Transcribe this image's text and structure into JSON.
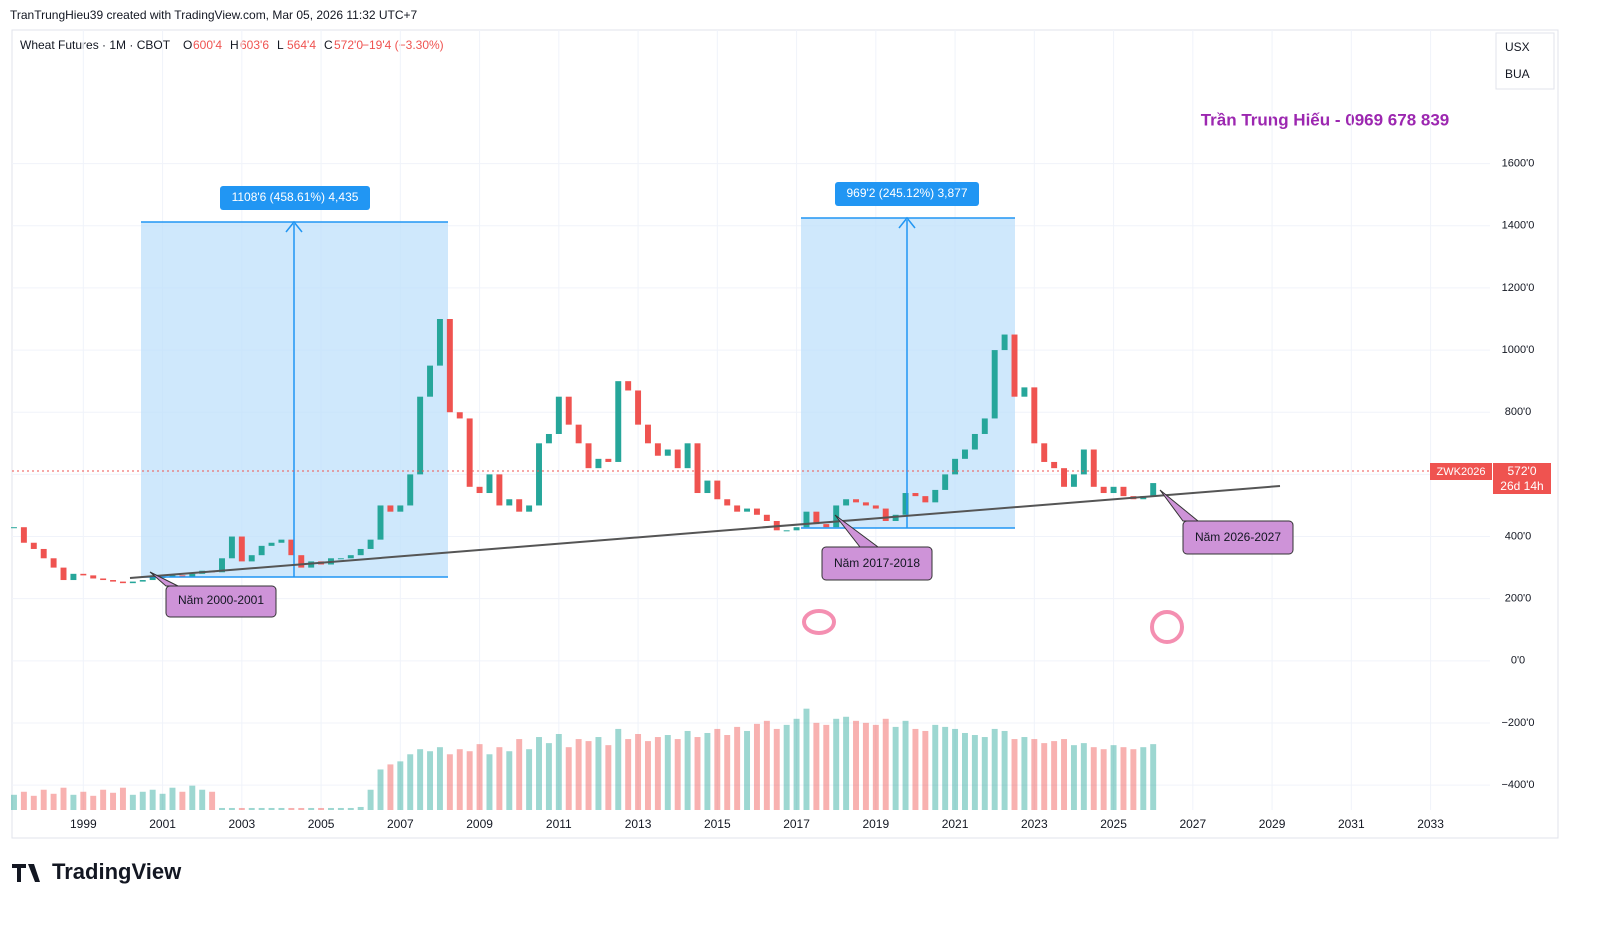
{
  "header": {
    "credit": "TranTrungHieu39 created with TradingView.com, Mar 05, 2026 11:32 UTC+7",
    "symbol": "Wheat Futures · 1M · CBOT",
    "ohlc": [
      {
        "key": "O",
        "text": "600'4"
      },
      {
        "key": "H",
        "text": "603'6"
      },
      {
        "key": "L",
        "text": "564'4"
      },
      {
        "key": "C",
        "text": "572'0"
      }
    ],
    "change": "−19'4 (−3.30%)"
  },
  "units": [
    "USX",
    "BUA"
  ],
  "watermark": "Trần Trung Hiếu - 0969 678 839",
  "measures": [
    "1108'6 (458.61%) 4,435",
    "969'2 (245.12%) 3,877"
  ],
  "annotations": [
    "Năm 2000-2001",
    "Năm 2017-2018",
    "Năm 2026-2027"
  ],
  "price_tag": {
    "symbol": "ZWK2026",
    "price": "572'0",
    "countdown": "26d 14h"
  },
  "logo": "TradingView",
  "chart_data": {
    "type": "candlestick",
    "xlim": [
      1997.2,
      2034.5
    ],
    "ylim": [
      -480,
      2030
    ],
    "xticks": [
      1999,
      2001,
      2003,
      2005,
      2007,
      2009,
      2011,
      2013,
      2015,
      2017,
      2019,
      2021,
      2023,
      2025,
      2027,
      2029,
      2031,
      2033
    ],
    "yticks": [
      {
        "value": 1600,
        "label": "1600'0"
      },
      {
        "value": 1400,
        "label": "1400'0"
      },
      {
        "value": 1200,
        "label": "1200'0"
      },
      {
        "value": 1000,
        "label": "1000'0"
      },
      {
        "value": 800,
        "label": "800'0"
      },
      {
        "value": 600,
        "label": "600'0"
      },
      {
        "value": 400,
        "label": "400'0"
      },
      {
        "value": 200,
        "label": "200'0"
      },
      {
        "value": 0,
        "label": "0'0"
      },
      {
        "value": -200,
        "label": "−200'0"
      },
      {
        "value": -400,
        "label": "−400'0"
      }
    ],
    "grid": true,
    "up_color": "#26a69a",
    "down_color": "#ef5350",
    "x": [
      1997.25,
      1997.5,
      1997.75,
      1998,
      1998.25,
      1998.5,
      1998.75,
      1999,
      1999.25,
      1999.5,
      1999.75,
      2000,
      2000.25,
      2000.5,
      2000.75,
      2001,
      2001.25,
      2001.5,
      2001.75,
      2002,
      2002.25,
      2002.5,
      2002.75,
      2003,
      2003.25,
      2003.5,
      2003.75,
      2004,
      2004.25,
      2004.5,
      2004.75,
      2005,
      2005.25,
      2005.5,
      2005.75,
      2006,
      2006.25,
      2006.5,
      2006.75,
      2007,
      2007.25,
      2007.5,
      2007.75,
      2008,
      2008.25,
      2008.5,
      2008.75,
      2009,
      2009.25,
      2009.5,
      2009.75,
      2010,
      2010.25,
      2010.5,
      2010.75,
      2011,
      2011.25,
      2011.5,
      2011.75,
      2012,
      2012.25,
      2012.5,
      2012.75,
      2013,
      2013.25,
      2013.5,
      2013.75,
      2014,
      2014.25,
      2014.5,
      2014.75,
      2015,
      2015.25,
      2015.5,
      2015.75,
      2016,
      2016.25,
      2016.5,
      2016.75,
      2017,
      2017.25,
      2017.5,
      2017.75,
      2018,
      2018.25,
      2018.5,
      2018.75,
      2019,
      2019.25,
      2019.5,
      2019.75,
      2020,
      2020.25,
      2020.5,
      2020.75,
      2021,
      2021.25,
      2021.5,
      2021.75,
      2022,
      2022.25,
      2022.5,
      2022.75,
      2023,
      2023.25,
      2023.5,
      2023.75,
      2024,
      2024.25,
      2024.5,
      2024.75,
      2025,
      2025.25,
      2025.5,
      2025.75,
      2026
    ],
    "series": [
      {
        "name": "Wheat Futures",
        "values": [
          430,
          380,
          360,
          330,
          300,
          260,
          280,
          275,
          265,
          260,
          255,
          250,
          255,
          260,
          270,
          270,
          275,
          270,
          280,
          290,
          285,
          330,
          400,
          320,
          340,
          370,
          380,
          390,
          340,
          300,
          320,
          310,
          330,
          330,
          340,
          360,
          390,
          500,
          480,
          500,
          600,
          850,
          950,
          1100,
          800,
          780,
          560,
          540,
          600,
          500,
          520,
          480,
          500,
          700,
          730,
          850,
          760,
          700,
          620,
          650,
          640,
          900,
          870,
          760,
          700,
          660,
          680,
          620,
          700,
          540,
          580,
          520,
          500,
          480,
          490,
          470,
          450,
          420,
          420,
          430,
          480,
          440,
          430,
          500,
          520,
          510,
          500,
          490,
          450,
          470,
          540,
          530,
          510,
          550,
          600,
          650,
          680,
          730,
          780,
          1000,
          1050,
          850,
          880,
          700,
          640,
          620,
          560,
          600,
          680,
          560,
          540,
          560,
          530,
          520,
          530,
          572
        ]
      },
      {
        "name": "Volume",
        "values": [
          15,
          18,
          14,
          20,
          16,
          22,
          15,
          18,
          14,
          20,
          17,
          22,
          15,
          18,
          20,
          16,
          22,
          18,
          24,
          20,
          18,
          2,
          2,
          2,
          2,
          2,
          2,
          2,
          2,
          2,
          2,
          2,
          2,
          2,
          2,
          3,
          20,
          40,
          45,
          48,
          55,
          60,
          58,
          62,
          55,
          60,
          58,
          65,
          55,
          62,
          58,
          70,
          60,
          72,
          66,
          75,
          62,
          70,
          68,
          72,
          64,
          80,
          70,
          75,
          68,
          72,
          74,
          70,
          78,
          72,
          76,
          80,
          74,
          82,
          78,
          85,
          88,
          80,
          84,
          90,
          100,
          86,
          84,
          90,
          92,
          88,
          86,
          84,
          90,
          82,
          88,
          80,
          78,
          84,
          82,
          80,
          76,
          74,
          72,
          80,
          78,
          70,
          72,
          70,
          66,
          68,
          70,
          64,
          66,
          62,
          60,
          64,
          62,
          60,
          62,
          65
        ]
      }
    ],
    "vlim": [
      0,
      300
    ]
  }
}
